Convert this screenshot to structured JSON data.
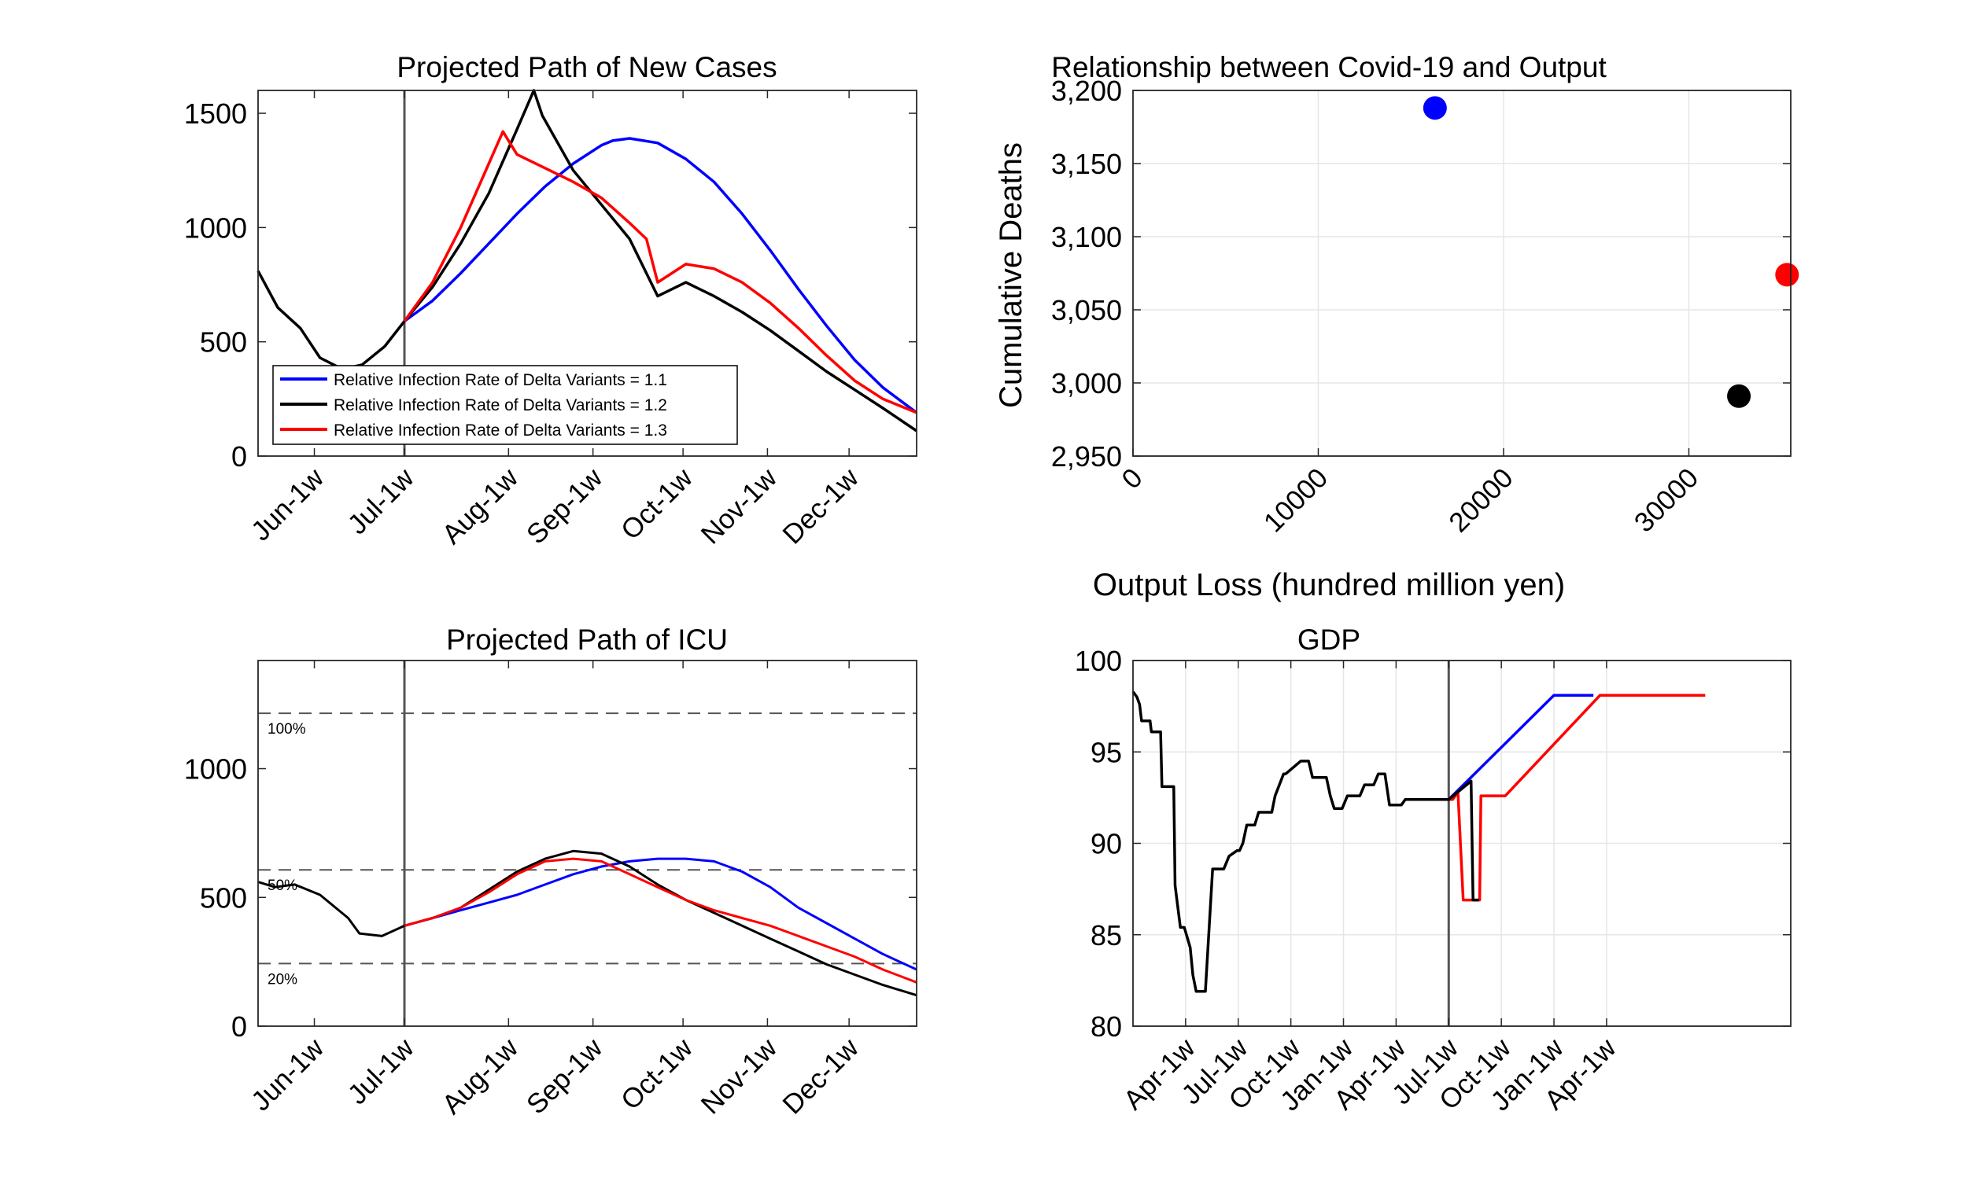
{
  "chart_data": [
    {
      "type": "line",
      "title": "Projected Path of New Cases",
      "xlabel": "",
      "ylabel": "",
      "xlim": [
        0,
        23.4
      ],
      "ylim": [
        0,
        1600
      ],
      "yticks": [
        0,
        500,
        1000,
        1500
      ],
      "xticks": [
        {
          "label": "Jun-1w",
          "x": 2
        },
        {
          "label": "Jul-1w",
          "x": 5.2
        },
        {
          "label": "Aug-1w",
          "x": 8.9
        },
        {
          "label": "Sep-1w",
          "x": 11.9
        },
        {
          "label": "Oct-1w",
          "x": 15.1
        },
        {
          "label": "Nov-1w",
          "x": 18.1
        },
        {
          "label": "Dec-1w",
          "x": 21.0
        }
      ],
      "grid": false,
      "vline_x": 5.2,
      "legend_position": "lower-left",
      "series": [
        {
          "name": "Relative Infection Rate of Delta Variants = 1.1",
          "color": "#0000ff",
          "x": [
            5.2,
            6.2,
            7.2,
            8.2,
            9.2,
            10.2,
            11.2,
            12.2,
            12.6,
            13.2,
            14.2,
            15.2,
            16.2,
            17.2,
            18.2,
            19.2,
            20.2,
            21.2,
            22.2,
            23.4
          ],
          "y": [
            590,
            680,
            800,
            930,
            1060,
            1180,
            1280,
            1360,
            1380,
            1390,
            1370,
            1300,
            1200,
            1060,
            900,
            730,
            570,
            420,
            300,
            190
          ]
        },
        {
          "name": "Relative Infection Rate of Delta Variants = 1.2",
          "color": "#000000",
          "x": [
            0,
            0.7,
            1.5,
            2.2,
            3.0,
            3.7,
            4.5,
            5.2,
            6.2,
            7.2,
            8.2,
            9.2,
            9.8,
            10.1,
            11.2,
            12.2,
            13.2,
            14.2,
            15.2,
            16.2,
            17.2,
            18.2,
            19.2,
            20.2,
            21.2,
            22.2,
            23.4
          ],
          "y": [
            810,
            650,
            560,
            430,
            380,
            400,
            480,
            590,
            740,
            930,
            1150,
            1430,
            1600,
            1490,
            1250,
            1100,
            950,
            700,
            760,
            700,
            630,
            550,
            460,
            370,
            290,
            210,
            110
          ]
        },
        {
          "name": "Relative Infection Rate of Delta Variants = 1.3",
          "color": "#ff0000",
          "x": [
            5.2,
            6.2,
            7.2,
            8.2,
            8.7,
            9.2,
            10.2,
            11.2,
            12.2,
            13.2,
            13.8,
            14.2,
            15.2,
            16.2,
            17.2,
            18.2,
            19.2,
            20.2,
            21.2,
            22.2,
            23.4
          ],
          "y": [
            590,
            760,
            1000,
            1280,
            1420,
            1320,
            1260,
            1200,
            1130,
            1020,
            950,
            760,
            840,
            820,
            760,
            670,
            560,
            440,
            330,
            250,
            190
          ]
        }
      ]
    },
    {
      "type": "scatter",
      "title": "Relationship between Covid-19 and Output",
      "xlabel": "Output Loss (hundred million yen)",
      "ylabel": "Cumulative Deaths",
      "xlim": [
        0,
        35500
      ],
      "ylim": [
        2950,
        3200
      ],
      "xticks": [
        "0",
        "10000",
        "20000",
        "30000"
      ],
      "yticks": [
        "2,950",
        "3,000",
        "3,050",
        "3,100",
        "3,150",
        "3,200"
      ],
      "grid": true,
      "points": [
        {
          "x": 16300,
          "y": 3188,
          "color": "#0000ff"
        },
        {
          "x": 32700,
          "y": 2991,
          "color": "#000000"
        },
        {
          "x": 35300,
          "y": 3074,
          "color": "#ff0000"
        }
      ]
    },
    {
      "type": "line",
      "title": "Projected Path of ICU",
      "xlabel": "",
      "ylabel": "",
      "xlim": [
        0,
        23.4
      ],
      "ylim": [
        0,
        1420
      ],
      "yticks": [
        0,
        500,
        1000
      ],
      "xticks": [
        {
          "label": "Jun-1w",
          "x": 2
        },
        {
          "label": "Jul-1w",
          "x": 5.2
        },
        {
          "label": "Aug-1w",
          "x": 8.9
        },
        {
          "label": "Sep-1w",
          "x": 11.9
        },
        {
          "label": "Oct-1w",
          "x": 15.1
        },
        {
          "label": "Nov-1w",
          "x": 18.1
        },
        {
          "label": "Dec-1w",
          "x": 21.0
        }
      ],
      "grid": false,
      "vline_x": 5.2,
      "hlines": [
        {
          "y": 1215,
          "label": "100%"
        },
        {
          "y": 607,
          "label": "50%"
        },
        {
          "y": 243,
          "label": "20%"
        }
      ],
      "series": [
        {
          "name": "1.1",
          "color": "#0000ff",
          "x": [
            5.2,
            6.2,
            7.2,
            8.2,
            9.2,
            10.2,
            11.2,
            12.2,
            13.2,
            14.2,
            15.2,
            16.2,
            17.2,
            18.2,
            19.2,
            20.2,
            21.2,
            22.2,
            23.4
          ],
          "y": [
            390,
            420,
            450,
            480,
            510,
            550,
            590,
            620,
            640,
            650,
            650,
            640,
            600,
            540,
            460,
            400,
            340,
            280,
            220
          ]
        },
        {
          "name": "1.2",
          "color": "#000000",
          "x": [
            0,
            0.6,
            1.3,
            2.2,
            3.2,
            3.6,
            4.4,
            5.2,
            6.2,
            7.2,
            8.2,
            9.2,
            10.2,
            11.2,
            12.2,
            13.2,
            14.2,
            15.2,
            16.2,
            17.2,
            18.2,
            19.2,
            20.2,
            21.2,
            22.2,
            23.4
          ],
          "y": [
            560,
            540,
            550,
            510,
            420,
            360,
            350,
            390,
            420,
            460,
            530,
            600,
            650,
            680,
            670,
            620,
            550,
            490,
            440,
            390,
            340,
            290,
            240,
            200,
            160,
            120
          ]
        },
        {
          "name": "1.3",
          "color": "#ff0000",
          "x": [
            5.2,
            6.2,
            7.2,
            8.2,
            9.2,
            10.2,
            11.2,
            12.2,
            13.2,
            14.2,
            15.2,
            16.2,
            17.2,
            18.2,
            19.2,
            20.2,
            21.2,
            22.2,
            23.4
          ],
          "y": [
            390,
            420,
            460,
            520,
            590,
            640,
            650,
            640,
            590,
            540,
            490,
            450,
            420,
            390,
            350,
            310,
            270,
            220,
            170
          ]
        }
      ]
    },
    {
      "type": "line",
      "title": "GDP",
      "xlabel": "",
      "ylabel": "",
      "xlim": [
        0,
        100
      ],
      "ylim": [
        80,
        100
      ],
      "yticks": [
        80,
        85,
        90,
        95,
        100
      ],
      "xticks": [
        {
          "label": "Apr-1w",
          "x": 8
        },
        {
          "label": "Jul-1w",
          "x": 16
        },
        {
          "label": "Oct-1w",
          "x": 24
        },
        {
          "label": "Jan-1w",
          "x": 32
        },
        {
          "label": "Apr-1w",
          "x": 40
        },
        {
          "label": "Jul-1w",
          "x": 48
        },
        {
          "label": "Oct-1w",
          "x": 56
        },
        {
          "label": "Jan-1w",
          "x": 64
        },
        {
          "label": "Apr-1w",
          "x": 72
        }
      ],
      "grid": true,
      "vline_x": 48,
      "series": [
        {
          "name": "1.1",
          "color": "#0000ff",
          "x": [
            48,
            64,
            70
          ],
          "y": [
            92.4,
            98.1,
            98.1
          ]
        },
        {
          "name": "1.3",
          "color": "#ff0000",
          "x": [
            48,
            48.6,
            49.4,
            50.2,
            52.7,
            52.9,
            56.6,
            71,
            87
          ],
          "y": [
            92.4,
            92.4,
            92.8,
            86.9,
            86.9,
            92.6,
            92.6,
            98.1,
            98.1
          ]
        },
        {
          "name": "1.2",
          "color": "#000000",
          "x": [
            0,
            0.6,
            1.0,
            1.3,
            2.6,
            2.8,
            4.2,
            4.4,
            6.2,
            6.4,
            7.2,
            7.8,
            8.7,
            9.1,
            9.6,
            10.3,
            11.0,
            12.1,
            12.6,
            13.8,
            14.6,
            15.8,
            16.2,
            16.7,
            17.3,
            18.5,
            19.1,
            21.1,
            21.6,
            22.9,
            23.2,
            25.5,
            26.7,
            27.3,
            29.4,
            30.0,
            30.6,
            31.8,
            32.6,
            34.5,
            35.2,
            36.6,
            37.3,
            38.3,
            39.0,
            40.8,
            41.4,
            42.6,
            43.2,
            45.0,
            45.6,
            46.8,
            47.4,
            48.0,
            51.4,
            51.7,
            52.6
          ],
          "y": [
            98.3,
            98.0,
            97.6,
            96.7,
            96.7,
            96.1,
            96.1,
            93.1,
            93.1,
            87.7,
            85.4,
            85.4,
            84.3,
            82.8,
            81.9,
            81.9,
            81.9,
            88.6,
            88.6,
            88.6,
            89.3,
            89.6,
            89.6,
            90.0,
            91.0,
            91.0,
            91.7,
            91.7,
            92.6,
            93.8,
            93.8,
            94.5,
            94.5,
            93.6,
            93.6,
            92.6,
            91.9,
            91.9,
            92.6,
            92.6,
            93.2,
            93.2,
            93.8,
            93.8,
            92.1,
            92.1,
            92.4,
            92.4,
            92.4,
            92.4,
            92.4,
            92.4,
            92.4,
            92.4,
            93.4,
            86.9,
            86.9
          ]
        }
      ]
    }
  ]
}
